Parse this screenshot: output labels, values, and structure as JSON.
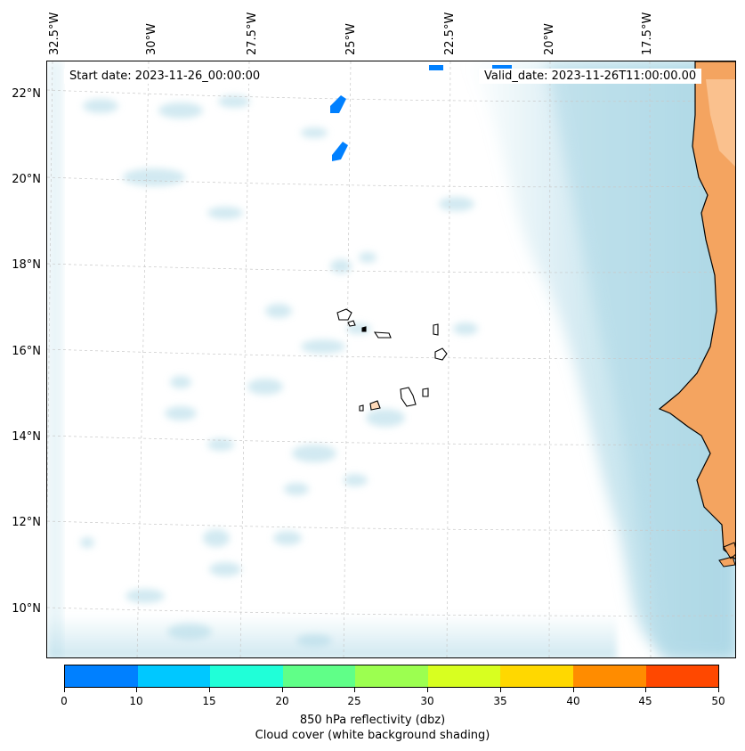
{
  "map": {
    "lon_labels": [
      "32.5°W",
      "30°W",
      "27.5°W",
      "25°W",
      "22.5°W",
      "20°W",
      "17.5°W"
    ],
    "lat_labels": [
      "22°N",
      "20°N",
      "18°N",
      "16°N",
      "14°N",
      "12°N",
      "10°N"
    ],
    "start_date": "Start date: 2023-11-26_00:00:00",
    "valid_date": "Valid_date: 2023-11-26T11:00:00.00",
    "land_color": "#f4a460",
    "cloud_color": "#add8e6",
    "island_color": "#ffdab9"
  },
  "colorbar": {
    "ticks": [
      "0",
      "10",
      "15",
      "20",
      "25",
      "30",
      "35",
      "40",
      "45",
      "50"
    ],
    "colors": [
      "#0080ff",
      "#00c8ff",
      "#20ffd8",
      "#60ff88",
      "#9cff50",
      "#d8ff20",
      "#ffd800",
      "#ff8c00",
      "#ff4800"
    ],
    "label_line1": "850 hPa reflectivity (dbz)",
    "label_line2": "Cloud cover (white background shading)"
  }
}
